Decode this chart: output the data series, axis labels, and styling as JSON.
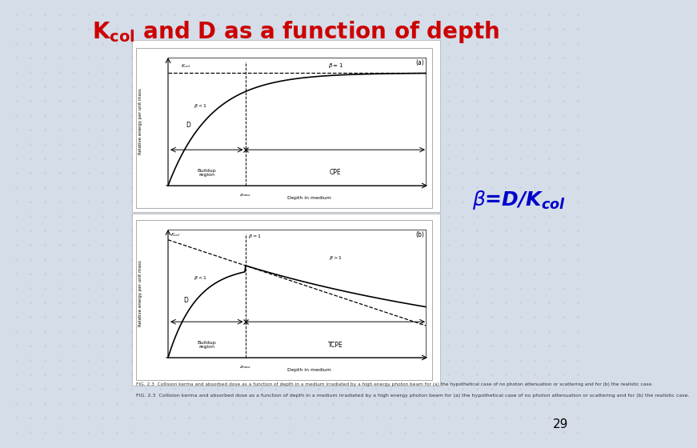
{
  "title_color": "#cc0000",
  "slide_bg": "#d4dde8",
  "beta_color": "#0000cc",
  "page_number": "29",
  "caption": "FIG. 2.3  Collision kerma and absorbed dose as a function of depth in a medium irradiated by a high energy photon beam for (a) the hypothetical case of no photon attenuation or scattering and for (b) the realistic case.",
  "grid_color": "#c0ccd8",
  "title_text": "K$_{col}$ and D as a function of depth"
}
